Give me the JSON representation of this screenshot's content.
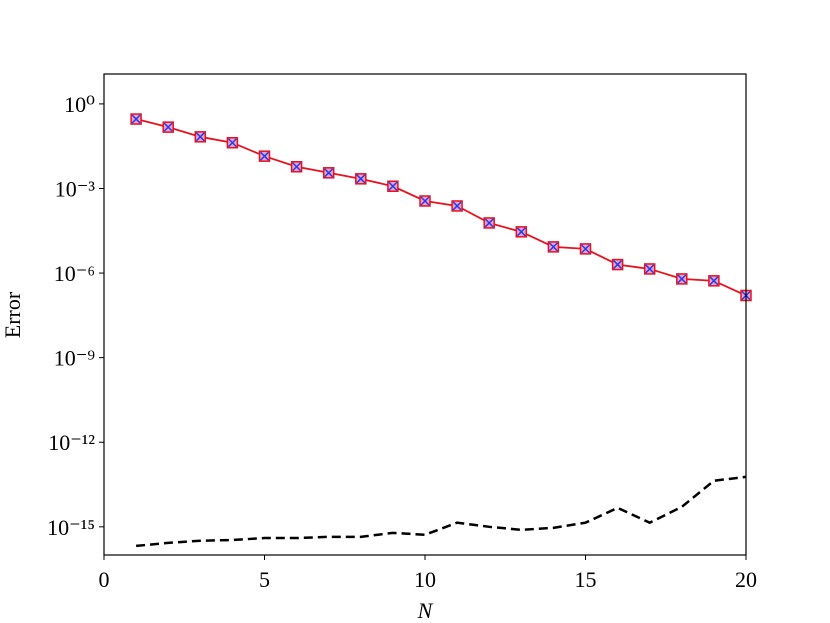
{
  "chart_data": {
    "type": "line",
    "x_label": "N",
    "y_label": "Error",
    "x": [
      1,
      2,
      3,
      4,
      5,
      6,
      7,
      8,
      9,
      10,
      11,
      12,
      13,
      14,
      15,
      16,
      17,
      18,
      19,
      20
    ],
    "series": [
      {
        "color": "#e8121e",
        "marker_color": "#1f3ff0",
        "values": [
          0.29,
          0.15,
          0.068,
          0.042,
          0.014,
          0.0059,
          0.0036,
          0.0022,
          0.0012,
          0.00036,
          0.00024,
          6e-05,
          2.9e-05,
          8.5e-06,
          7.2e-06,
          2e-06,
          1.4e-06,
          6.2e-07,
          5.3e-07,
          1.6e-07
        ]
      },
      {
        "color": "#000000",
        "dashed": true,
        "values": [
          2.1e-16,
          2.7e-16,
          3.2e-16,
          3.4e-16,
          4e-16,
          4e-16,
          4.4e-16,
          4.4e-16,
          6.1e-16,
          5.2e-16,
          1.4e-15,
          1e-15,
          7.8e-16,
          9.2e-16,
          1.4e-15,
          4.7e-15,
          1.4e-15,
          5.1e-15,
          4.3e-14,
          5.9e-14
        ]
      }
    ],
    "xlim": [
      0,
      20
    ],
    "xticks": [
      0,
      5,
      10,
      15,
      20
    ],
    "ylim": [
      1e-16,
      11.5
    ],
    "log_y": true,
    "yticks": [
      {
        "value": 1,
        "label": "10⁰"
      },
      {
        "value": 0.001,
        "label": "10⁻³"
      },
      {
        "value": 1e-06,
        "label": "10⁻⁶"
      },
      {
        "value": 1e-09,
        "label": "10⁻⁹"
      },
      {
        "value": 1e-12,
        "label": "10⁻¹²"
      },
      {
        "value": 1e-15,
        "label": "10⁻¹⁵"
      }
    ]
  }
}
